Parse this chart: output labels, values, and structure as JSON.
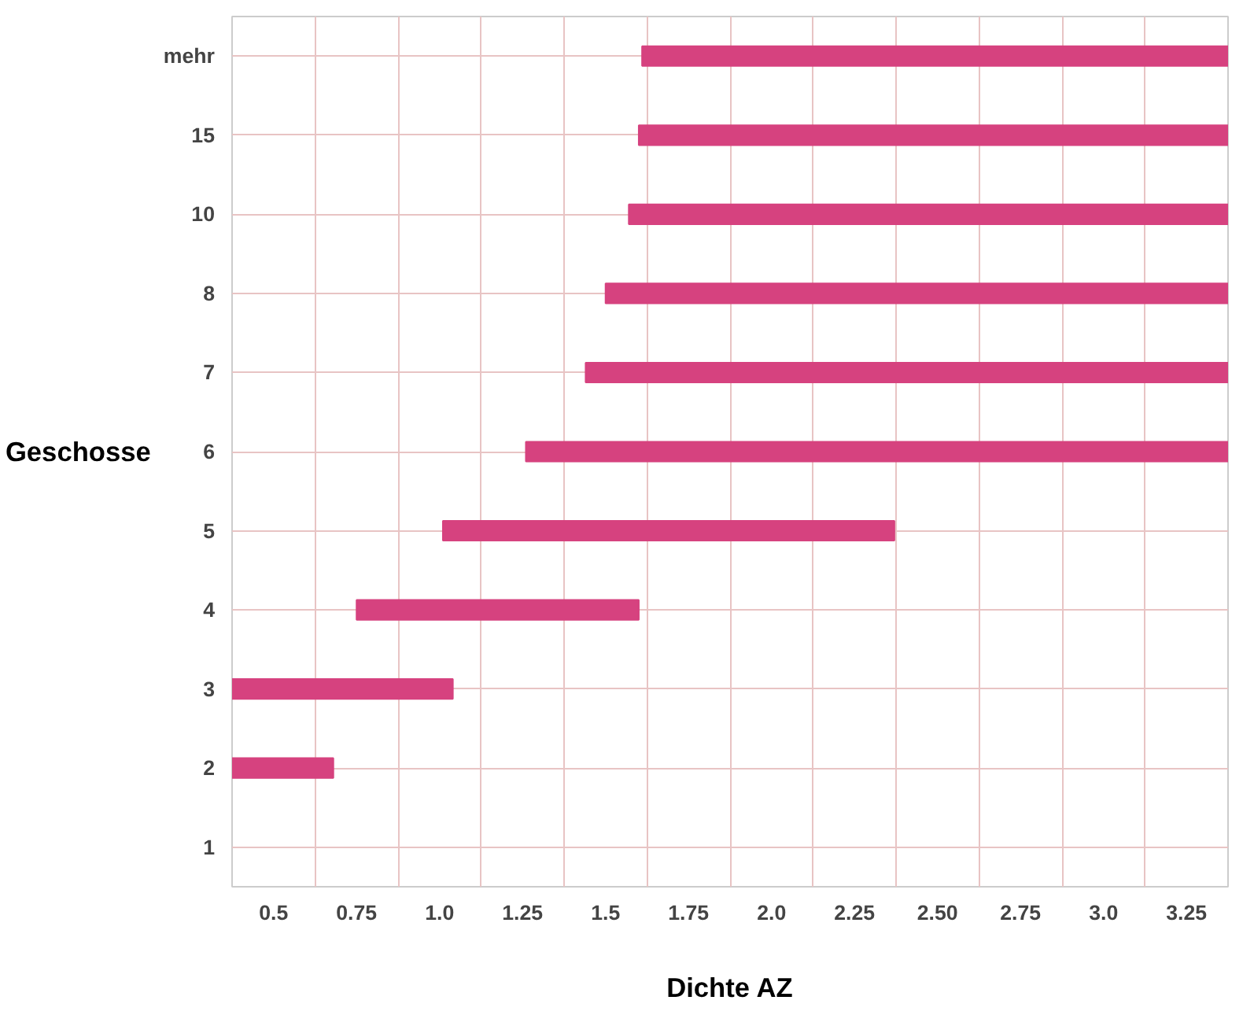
{
  "chart_data": {
    "type": "bar",
    "orientation": "horizontal",
    "xlabel": "Dichte AZ",
    "ylabel": "Geschosse",
    "categories": [
      "mehr",
      "15",
      "10",
      "8",
      "7",
      "6",
      "5",
      "4",
      "3",
      "2",
      "1"
    ],
    "series": [
      {
        "color": "#d6427f",
        "base": [
          1.61,
          1.6,
          1.57,
          1.5,
          1.44,
          1.26,
          1.01,
          0.75,
          0.375,
          0.375,
          null
        ],
        "values": [
          1.765,
          1.775,
          1.805,
          1.875,
          1.935,
          2.115,
          1.36,
          0.85,
          0.665,
          0.305,
          null
        ]
      }
    ],
    "xlim": [
      0.375,
      3.375
    ],
    "xticks": [
      {
        "value": 0.375,
        "label": null
      },
      0.5,
      {
        "value": 0.625,
        "label": null
      },
      0.75,
      {
        "value": 0.875,
        "label": null
      },
      {
        "value": 1.0,
        "label": "1.0"
      },
      {
        "value": 1.125,
        "label": null
      },
      1.25,
      {
        "value": 1.375,
        "label": null
      },
      1.5,
      {
        "value": 1.625,
        "label": null
      },
      1.75,
      {
        "value": 1.875,
        "label": null
      },
      {
        "value": 2.0,
        "label": "2.0"
      },
      {
        "value": 2.125,
        "label": null
      },
      2.25,
      {
        "value": 2.375,
        "label": null
      },
      {
        "value": 2.5,
        "label": "2.50"
      },
      {
        "value": 2.625,
        "label": null
      },
      2.75,
      {
        "value": 2.875,
        "label": null
      },
      {
        "value": 3.0,
        "label": "3.0"
      },
      {
        "value": 3.125,
        "label": null
      },
      3.25,
      {
        "value": 3.375,
        "label": null
      }
    ],
    "grid": true
  }
}
